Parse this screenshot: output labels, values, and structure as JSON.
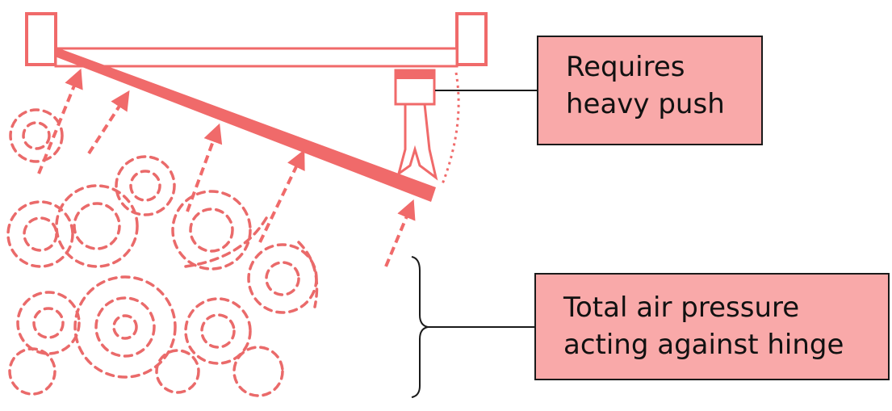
{
  "callouts": {
    "push": {
      "line1": "Requires",
      "line2": "heavy push"
    },
    "pressure": {
      "line1": "Total air pressure",
      "line2": "acting against hinge"
    }
  },
  "colors": {
    "door": "#f06a6a",
    "swirl": "#ea6a6a",
    "callout_fill": "#f9a9a9",
    "outline": "#1a1a1a"
  }
}
